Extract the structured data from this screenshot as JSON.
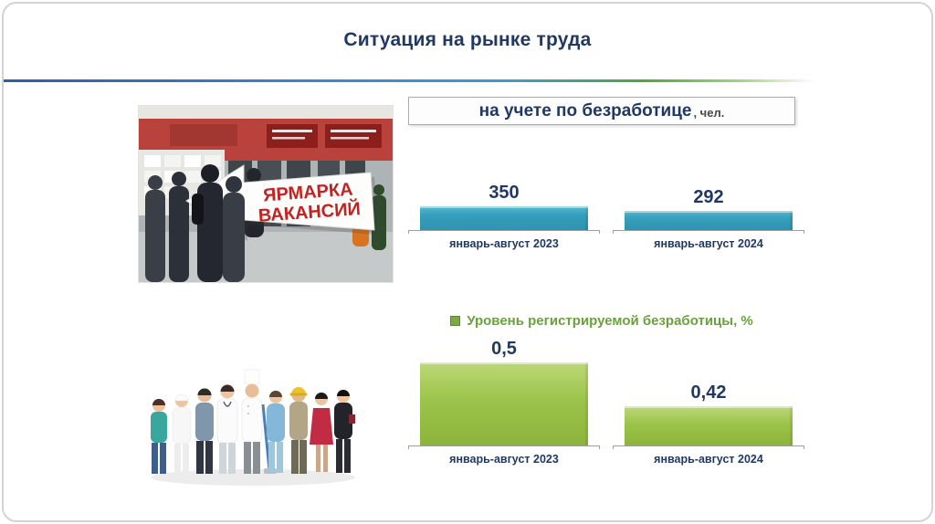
{
  "slide": {
    "title": "Ситуация на рынке труда"
  },
  "photos": {
    "job_fair": {
      "sign_line1": "ЯРМАРКА",
      "sign_line2": "ВАКАНСИЙ"
    }
  },
  "chart_data": [
    {
      "type": "bar",
      "title": "на учете по безработице",
      "title_suffix": ", чел.",
      "categories": [
        "январь-август 2023",
        "январь-август 2024"
      ],
      "values": [
        350,
        292
      ],
      "value_labels": [
        "350",
        "292"
      ],
      "bar_color": "#36A0BD",
      "label_color": "#1F3864",
      "ylim": [
        0,
        1500
      ],
      "legend": "none",
      "grid": false
    },
    {
      "type": "bar",
      "title": "Уровень регистрируемой безработицы, %",
      "categories": [
        "январь-август 2023",
        "январь-август 2024"
      ],
      "values": [
        0.5,
        0.42
      ],
      "value_labels": [
        "0,5",
        "0,42"
      ],
      "bar_color": "#9CC44A",
      "title_color": "#69A23B",
      "legend_marker_color": "#7CA943",
      "ylim": [
        0.35,
        0.55
      ],
      "legend": "top",
      "grid": false
    }
  ]
}
